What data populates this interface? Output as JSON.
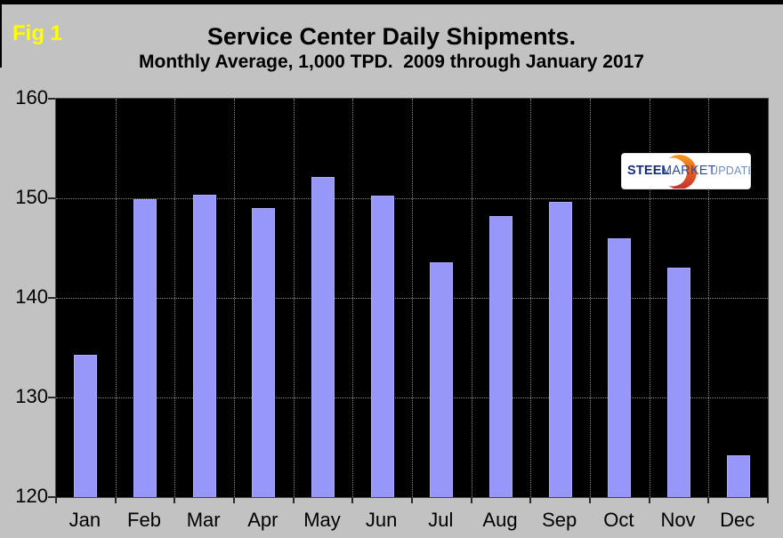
{
  "figure_label": "Fig 1",
  "title": "Service Center Daily Shipments.",
  "subtitle": "Monthly Average, 1,000 TPD.  2009 through January 2017",
  "logo": {
    "part1": "STEEL",
    "part2": "MARKET",
    "part3": "UPDATE"
  },
  "colors": {
    "background": "#c2c2c2",
    "plot_background": "#000000",
    "bar_fill": "#9797fa",
    "bar_border": "#a9a9ff",
    "gridline": "#8a8a8a",
    "figure_label_color": "#ffff00",
    "title_color": "#000000",
    "logo_steel": "#182c7a",
    "logo_market": "#2c4ba4",
    "logo_update": "#6f8cc8",
    "logo_crescent_top": "#f79a1f",
    "logo_crescent_bottom": "#c62b2f"
  },
  "chart_data": {
    "type": "bar",
    "title": "Service Center Daily Shipments.",
    "subtitle": "Monthly Average, 1,000 TPD.  2009 through January 2017",
    "categories": [
      "Jan",
      "Feb",
      "Mar",
      "Apr",
      "May",
      "Jun",
      "Jul",
      "Aug",
      "Sep",
      "Oct",
      "Nov",
      "Dec"
    ],
    "values": [
      134.3,
      149.9,
      150.4,
      149.0,
      152.1,
      150.3,
      143.6,
      148.2,
      149.6,
      146.0,
      143.0,
      124.2
    ],
    "xlabel": "",
    "ylabel": "",
    "ylim": [
      120,
      160
    ],
    "yticks": [
      120,
      130,
      140,
      150,
      160
    ],
    "grid": true,
    "legend": false,
    "plot_bg": "black",
    "bar_color": "periwinkle"
  }
}
